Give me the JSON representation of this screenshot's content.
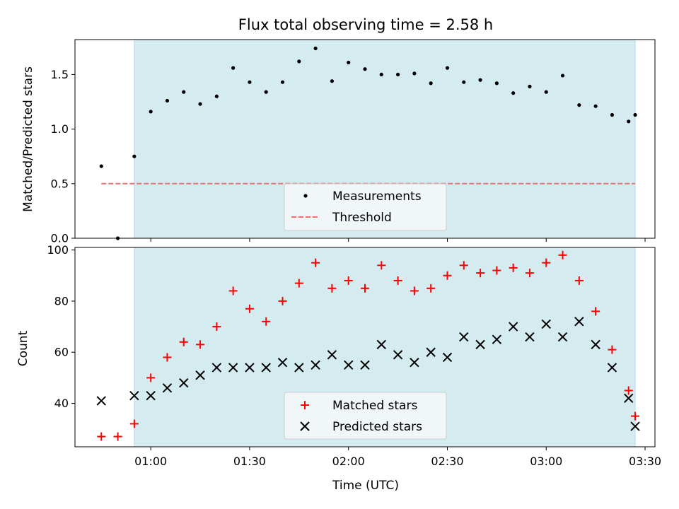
{
  "title": "Flux total observing time = 2.58 h",
  "colors": {
    "shade": "#d4ebf0",
    "shade_edge": "#b9dde6",
    "measurement": "#000000",
    "threshold": "#f07070",
    "matched": "#ff0000",
    "predicted": "#000000"
  },
  "chart_data": [
    {
      "type": "scatter",
      "ylabel": "Matched/Predicted stars",
      "xlim": [
        "00:37",
        "03:33"
      ],
      "ylim": [
        0,
        1.82
      ],
      "yticks": [
        0,
        0.5,
        1,
        1.5
      ],
      "ytick_labels": [
        "0.0",
        "0.5",
        "1.0",
        "1.5"
      ],
      "shaded_interval": [
        "00:55",
        "03:27"
      ],
      "threshold": 0.5,
      "threshold_range": [
        "00:45",
        "03:27"
      ],
      "legend": {
        "position": "lower center",
        "entries": [
          "Measurements",
          "Threshold"
        ]
      },
      "series": [
        {
          "name": "Measurements",
          "marker": "dot",
          "x": [
            "00:45",
            "00:50",
            "00:55",
            "01:00",
            "01:05",
            "01:10",
            "01:15",
            "01:20",
            "01:25",
            "01:30",
            "01:35",
            "01:40",
            "01:45",
            "01:50",
            "01:55",
            "02:00",
            "02:05",
            "02:10",
            "02:15",
            "02:20",
            "02:25",
            "02:30",
            "02:35",
            "02:40",
            "02:45",
            "02:50",
            "02:55",
            "03:00",
            "03:05",
            "03:10",
            "03:15",
            "03:20",
            "03:25",
            "03:27"
          ],
          "y": [
            0.66,
            0.0,
            0.75,
            1.16,
            1.26,
            1.34,
            1.23,
            1.3,
            1.56,
            1.43,
            1.34,
            1.43,
            1.62,
            1.74,
            1.44,
            1.61,
            1.55,
            1.5,
            1.5,
            1.51,
            1.42,
            1.56,
            1.43,
            1.45,
            1.42,
            1.33,
            1.39,
            1.34,
            1.49,
            1.22,
            1.21,
            1.13,
            1.07,
            1.13
          ]
        }
      ]
    },
    {
      "type": "scatter",
      "xlabel": "Time (UTC)",
      "ylabel": "Count",
      "xlim": [
        "00:37",
        "03:33"
      ],
      "ylim": [
        23,
        101
      ],
      "yticks": [
        40,
        60,
        80,
        100
      ],
      "ytick_labels": [
        "40",
        "60",
        "80",
        "100"
      ],
      "xticks": [
        "01:00",
        "01:30",
        "02:00",
        "02:30",
        "03:00",
        "03:30"
      ],
      "shaded_interval": [
        "00:55",
        "03:27"
      ],
      "legend": {
        "position": "lower center",
        "entries": [
          "Matched stars",
          "Predicted stars"
        ]
      },
      "x": [
        "00:45",
        "00:50",
        "00:55",
        "01:00",
        "01:05",
        "01:10",
        "01:15",
        "01:20",
        "01:25",
        "01:30",
        "01:35",
        "01:40",
        "01:45",
        "01:50",
        "01:55",
        "02:00",
        "02:05",
        "02:10",
        "02:15",
        "02:20",
        "02:25",
        "02:30",
        "02:35",
        "02:40",
        "02:45",
        "02:50",
        "02:55",
        "03:00",
        "03:05",
        "03:10",
        "03:15",
        "03:20",
        "03:25",
        "03:27"
      ],
      "series": [
        {
          "name": "Matched stars",
          "marker": "plus",
          "values": [
            27,
            27,
            32,
            50,
            58,
            64,
            63,
            70,
            84,
            77,
            72,
            80,
            87,
            95,
            85,
            88,
            85,
            94,
            88,
            84,
            85,
            90,
            94,
            91,
            92,
            93,
            91,
            95,
            98,
            88,
            76,
            61,
            45,
            35
          ]
        },
        {
          "name": "Predicted stars",
          "marker": "x",
          "values": [
            41,
            null,
            43,
            43,
            46,
            48,
            51,
            54,
            54,
            54,
            54,
            56,
            54,
            55,
            59,
            55,
            55,
            63,
            59,
            56,
            60,
            58,
            66,
            63,
            65,
            70,
            66,
            71,
            66,
            72,
            63,
            54,
            42,
            31
          ]
        }
      ]
    }
  ]
}
